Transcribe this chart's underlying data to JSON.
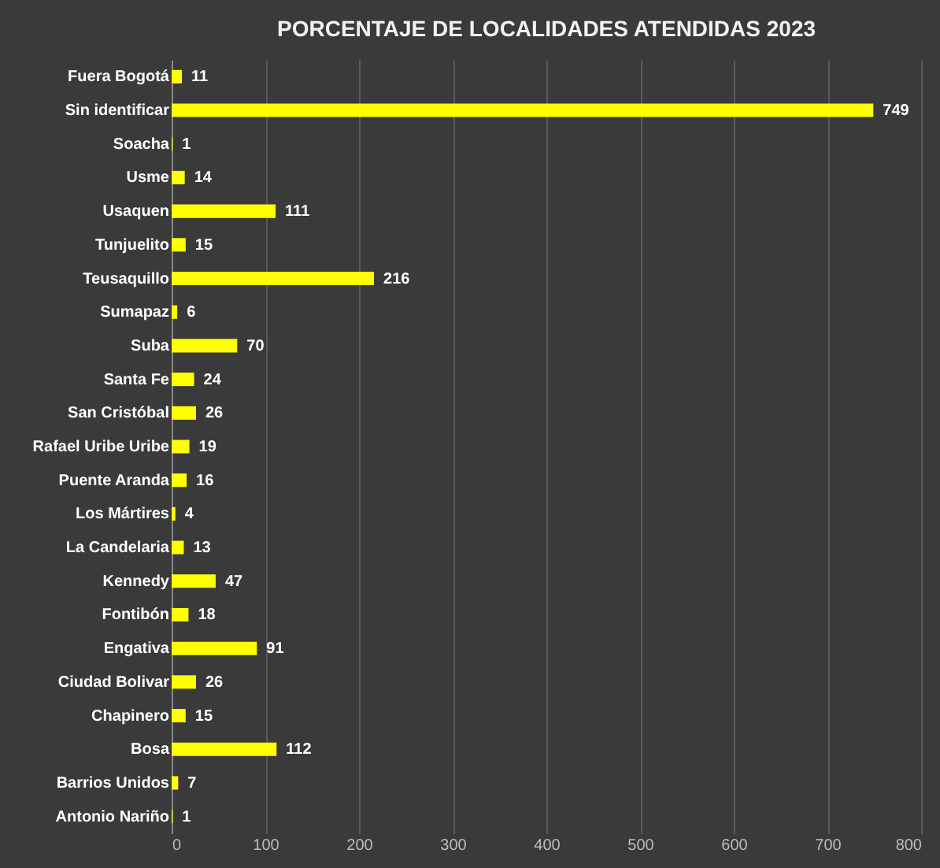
{
  "chart_data": {
    "type": "bar",
    "orientation": "horizontal",
    "title": "PORCENTAJE  DE LOCALIDADES ATENDIDAS 2023",
    "categories": [
      "Fuera Bogotá",
      "Sin identificar",
      "Soacha",
      "Usme",
      "Usaquen",
      "Tunjuelito",
      "Teusaquillo",
      "Sumapaz",
      "Suba",
      "Santa Fe",
      "San Cristóbal",
      "Rafael Uribe Uribe",
      "Puente Aranda",
      "Los Mártires",
      "La Candelaria",
      "Kennedy",
      "Fontibón",
      "Engativa",
      "Ciudad Bolivar",
      "Chapinero",
      "Bosa",
      "Barrios Unidos",
      "Antonio Nariño"
    ],
    "values": [
      11,
      749,
      1,
      14,
      111,
      15,
      216,
      6,
      70,
      24,
      26,
      19,
      16,
      4,
      13,
      47,
      18,
      91,
      26,
      15,
      112,
      7,
      1
    ],
    "color": "#ffff00",
    "xlim": [
      0,
      800
    ],
    "xticks": [
      0,
      100,
      200,
      300,
      400,
      500,
      600,
      700,
      800
    ],
    "grid": "x",
    "data_labels": true
  }
}
